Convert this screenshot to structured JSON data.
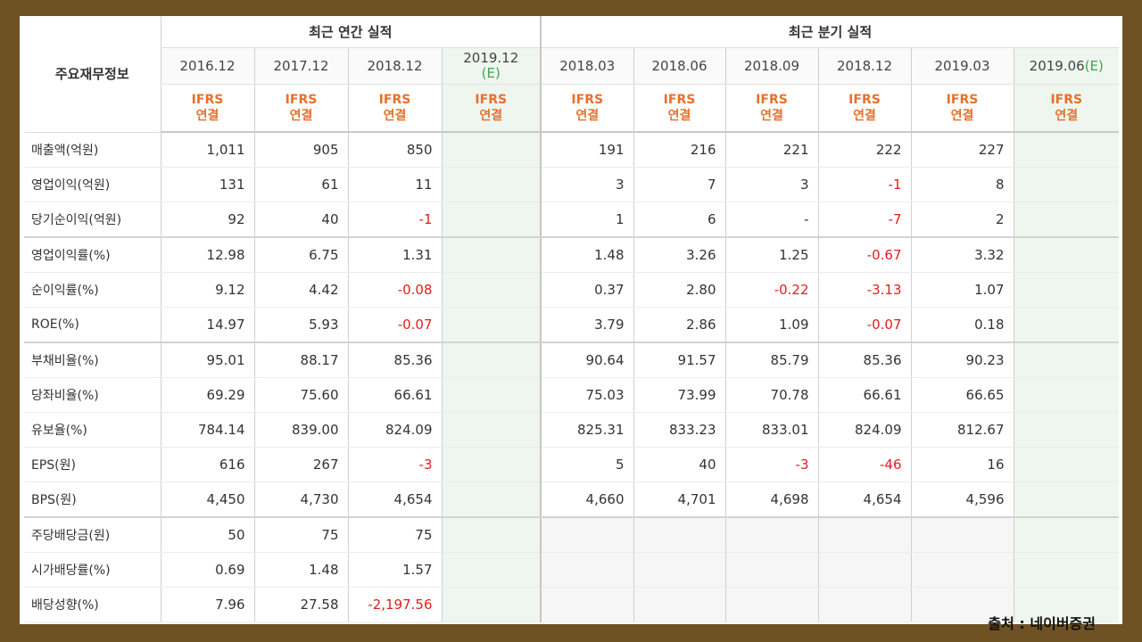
{
  "table": {
    "label_header": "주요재무정보",
    "groups": {
      "annual": "최근 연간 실적",
      "quarterly": "최근 분기 실적"
    },
    "periods": [
      {
        "label": "2016.12",
        "est": ""
      },
      {
        "label": "2017.12",
        "est": ""
      },
      {
        "label": "2018.12",
        "est": ""
      },
      {
        "label": "2019.12",
        "est": "(E)"
      },
      {
        "label": "2018.03",
        "est": ""
      },
      {
        "label": "2018.06",
        "est": ""
      },
      {
        "label": "2018.09",
        "est": ""
      },
      {
        "label": "2018.12",
        "est": ""
      },
      {
        "label": "2019.03",
        "est": ""
      },
      {
        "label": "2019.06",
        "est": "(E)"
      }
    ],
    "ifrs_line1": "IFRS",
    "ifrs_line2": "연결",
    "rows": [
      {
        "label": "매출액(억원)",
        "values": [
          "1,011",
          "905",
          "850",
          "",
          "191",
          "216",
          "221",
          "222",
          "227",
          ""
        ]
      },
      {
        "label": "영업이익(억원)",
        "values": [
          "131",
          "61",
          "11",
          "",
          "3",
          "7",
          "3",
          "-1",
          "8",
          ""
        ]
      },
      {
        "label": "당기순이익(억원)",
        "values": [
          "92",
          "40",
          "-1",
          "",
          "1",
          "6",
          "-",
          "-7",
          "2",
          ""
        ]
      },
      {
        "label": "영업이익률(%)",
        "values": [
          "12.98",
          "6.75",
          "1.31",
          "",
          "1.48",
          "3.26",
          "1.25",
          "-0.67",
          "3.32",
          ""
        ]
      },
      {
        "label": "순이익률(%)",
        "values": [
          "9.12",
          "4.42",
          "-0.08",
          "",
          "0.37",
          "2.80",
          "-0.22",
          "-3.13",
          "1.07",
          ""
        ]
      },
      {
        "label": "ROE(%)",
        "values": [
          "14.97",
          "5.93",
          "-0.07",
          "",
          "3.79",
          "2.86",
          "1.09",
          "-0.07",
          "0.18",
          ""
        ]
      },
      {
        "label": "부채비율(%)",
        "values": [
          "95.01",
          "88.17",
          "85.36",
          "",
          "90.64",
          "91.57",
          "85.79",
          "85.36",
          "90.23",
          ""
        ]
      },
      {
        "label": "당좌비율(%)",
        "values": [
          "69.29",
          "75.60",
          "66.61",
          "",
          "75.03",
          "73.99",
          "70.78",
          "66.61",
          "66.65",
          ""
        ]
      },
      {
        "label": "유보율(%)",
        "values": [
          "784.14",
          "839.00",
          "824.09",
          "",
          "825.31",
          "833.23",
          "833.01",
          "824.09",
          "812.67",
          ""
        ]
      },
      {
        "label": "EPS(원)",
        "values": [
          "616",
          "267",
          "-3",
          "",
          "5",
          "40",
          "-3",
          "-46",
          "16",
          ""
        ]
      },
      {
        "label": "BPS(원)",
        "values": [
          "4,450",
          "4,730",
          "4,654",
          "",
          "4,660",
          "4,701",
          "4,698",
          "4,654",
          "4,596",
          ""
        ]
      },
      {
        "label": "주당배당금(원)",
        "values": [
          "50",
          "75",
          "75",
          "",
          "",
          "",
          "",
          "",
          "",
          ""
        ]
      },
      {
        "label": "시가배당률(%)",
        "values": [
          "0.69",
          "1.48",
          "1.57",
          "",
          "",
          "",
          "",
          "",
          "",
          ""
        ]
      },
      {
        "label": "배당성향(%)",
        "values": [
          "7.96",
          "27.58",
          "-2,197.56",
          "",
          "",
          "",
          "",
          "",
          "",
          ""
        ]
      }
    ],
    "source": "출처 : 네이버증권"
  }
}
